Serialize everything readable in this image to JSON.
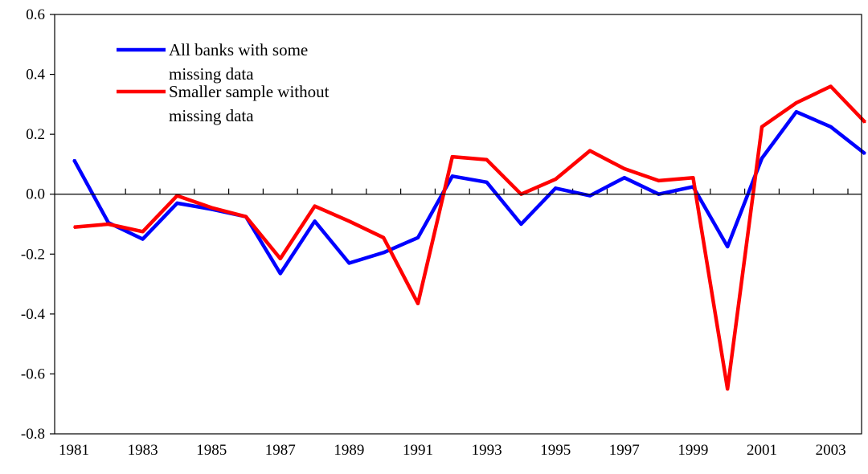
{
  "chart_data": {
    "type": "line",
    "title": "",
    "xlabel": "",
    "ylabel": "",
    "x": [
      1981,
      1982,
      1983,
      1984,
      1985,
      1986,
      1987,
      1988,
      1989,
      1990,
      1991,
      1992,
      1993,
      1994,
      1995,
      1996,
      1997,
      1998,
      1999,
      2000,
      2001,
      2002,
      2003,
      2004
    ],
    "xlim": [
      1981,
      2004
    ],
    "ylim": [
      -0.8,
      0.6
    ],
    "yticks": [
      -0.8,
      -0.6,
      -0.4,
      -0.2,
      0.0,
      0.2,
      0.4,
      0.6
    ],
    "ytick_labels": [
      "-0.8",
      "-0.6",
      "-0.4",
      "-0.2",
      "0.0",
      "0.2",
      "0.4",
      "0.6"
    ],
    "xtick_labels": [
      "1981",
      "1983",
      "1985",
      "1987",
      "1989",
      "1991",
      "1993",
      "1995",
      "1997",
      "1999",
      "2001",
      "2003"
    ],
    "xtick_label_years": [
      1981,
      1983,
      1985,
      1987,
      1989,
      1991,
      1993,
      1995,
      1997,
      1999,
      2001,
      2003
    ],
    "grid": false,
    "legend_position": "top-left",
    "series": [
      {
        "name_lines": [
          "All banks with some",
          "missing data"
        ],
        "color": "#0000ff",
        "values": [
          0.115,
          -0.095,
          -0.15,
          -0.03,
          -0.05,
          -0.075,
          -0.265,
          -0.09,
          -0.23,
          -0.195,
          -0.145,
          0.06,
          0.04,
          -0.1,
          0.02,
          -0.005,
          0.055,
          0.0,
          0.025,
          -0.175,
          0.12,
          0.275,
          0.225,
          0.135
        ]
      },
      {
        "name_lines": [
          "Smaller sample without",
          "missing data"
        ],
        "color": "#ff0000",
        "values": [
          -0.11,
          -0.1,
          -0.125,
          -0.005,
          -0.045,
          -0.075,
          -0.215,
          -0.04,
          -0.09,
          -0.145,
          -0.365,
          0.125,
          0.115,
          0.0,
          0.05,
          0.145,
          0.085,
          0.045,
          0.055,
          -0.65,
          0.225,
          0.305,
          0.36,
          0.24
        ]
      }
    ]
  }
}
